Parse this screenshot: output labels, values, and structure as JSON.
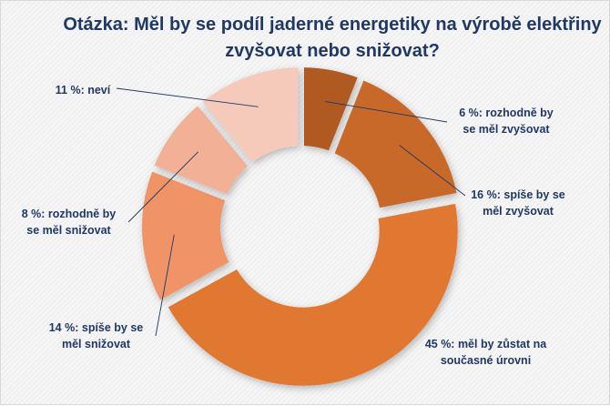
{
  "chart_data": {
    "type": "pie",
    "variant": "doughnut",
    "title": "Otázka: Měl by se podíl jaderné energetiky na výrobě elektřiny zvyšovat nebo snižovat?",
    "slices": [
      {
        "name": "rozhodně by se měl zvyšovat",
        "value": 6,
        "label": [
          "6 %: rozhodně by",
          "se měl zvyšovat"
        ],
        "color": "#B05A20"
      },
      {
        "name": "spíše by se měl zvyšovat",
        "value": 16,
        "label": [
          "16 %: spíše by se",
          "měl zvyšovat"
        ],
        "color": "#C8692A"
      },
      {
        "name": "měl by zůstat na současné úrovni",
        "value": 45,
        "label": [
          "45 %: měl by zůstat na",
          "současné úrovni"
        ],
        "color": "#E07830"
      },
      {
        "name": "spíše by se měl snižovat",
        "value": 14,
        "label": [
          "14 %: spíše by se",
          "měl snižovat"
        ],
        "color": "#F09468"
      },
      {
        "name": "rozhodně by se měl snižovat",
        "value": 8,
        "label": [
          "8 %: rozhodně by",
          "se měl snižovat"
        ],
        "color": "#F2B096"
      },
      {
        "name": "neví",
        "value": 11,
        "label": [
          "11 %: neví"
        ],
        "color": "#F6CABA"
      }
    ],
    "label_color": "#1F3864"
  }
}
